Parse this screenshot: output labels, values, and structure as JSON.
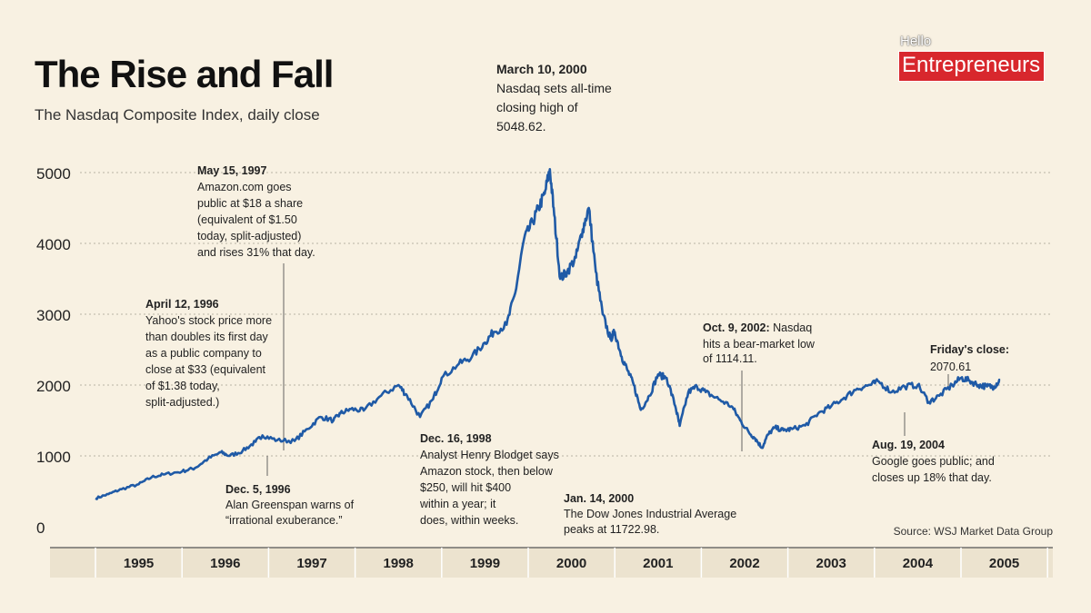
{
  "header": {
    "title": "The Rise and Fall",
    "subtitle": "The Nasdaq Composite Index, daily close"
  },
  "brand": {
    "hello": "Hello",
    "name": "Entrepreneurs"
  },
  "colors": {
    "background": "#f8f1e2",
    "line": "#1f5aa6",
    "brand_red": "#d8272d",
    "axis_band": "#ece3cf"
  },
  "source": "Source: WSJ Market Data Group",
  "chart_data": {
    "type": "line",
    "title": "The Rise and Fall",
    "subtitle": "The Nasdaq Composite Index, daily close",
    "xlabel": "",
    "ylabel": "",
    "ylim": [
      0,
      5000
    ],
    "xlim": [
      1995.0,
      2006.0
    ],
    "yticks": [
      0,
      1000,
      2000,
      3000,
      4000,
      5000
    ],
    "ytick_labels": [
      "0",
      "1000",
      "2000",
      "3000",
      "4000",
      "5000"
    ],
    "xtick_labels": [
      "1995",
      "1996",
      "1997",
      "1998",
      "1999",
      "2000",
      "2001",
      "2002",
      "2003",
      "2004",
      "2005"
    ],
    "grid": true,
    "series": [
      {
        "values_note": "",
        "x": [
          1995.0,
          1995.15,
          1995.3,
          1995.5,
          1995.65,
          1995.8,
          1996.0,
          1996.15,
          1996.3,
          1996.45,
          1996.55,
          1996.7,
          1996.85,
          1996.93,
          1997.1,
          1997.3,
          1997.45,
          1997.6,
          1997.75,
          1997.83,
          1997.95,
          1998.1,
          1998.3,
          1998.5,
          1998.6,
          1998.75,
          1998.9,
          1999.0,
          1999.2,
          1999.35,
          1999.5,
          1999.6,
          1999.75,
          1999.85,
          1999.95,
          2000.05,
          2000.12,
          2000.19,
          2000.25,
          2000.3,
          2000.37,
          2000.45,
          2000.55,
          2000.63,
          2000.7,
          2000.78,
          2000.86,
          2000.95,
          2001.0,
          2001.08,
          2001.15,
          2001.22,
          2001.3,
          2001.4,
          2001.5,
          2001.6,
          2001.7,
          2001.75,
          2001.85,
          2001.95,
          2002.05,
          2002.2,
          2002.35,
          2002.45,
          2002.55,
          2002.62,
          2002.7,
          2002.77,
          2002.85,
          2002.95,
          2003.05,
          2003.2,
          2003.35,
          2003.5,
          2003.65,
          2003.8,
          2003.95,
          2004.05,
          2004.2,
          2004.35,
          2004.5,
          2004.63,
          2004.75,
          2004.9,
          2005.0,
          2005.1,
          2005.2,
          2005.3,
          2005.38,
          2005.45
        ],
        "y": [
          400,
          460,
          530,
          600,
          700,
          740,
          780,
          830,
          960,
          1050,
          1000,
          1070,
          1200,
          1290,
          1220,
          1210,
          1380,
          1550,
          1500,
          1600,
          1660,
          1640,
          1850,
          2000,
          1850,
          1550,
          1800,
          2100,
          2300,
          2400,
          2600,
          2750,
          2850,
          3300,
          4050,
          4300,
          4500,
          4700,
          5048,
          4400,
          3500,
          3600,
          3800,
          4200,
          4500,
          3600,
          3000,
          2650,
          2750,
          2400,
          2200,
          2000,
          1650,
          1850,
          2150,
          2100,
          1700,
          1423,
          1900,
          1980,
          1900,
          1800,
          1700,
          1500,
          1330,
          1250,
          1114,
          1300,
          1400,
          1360,
          1380,
          1430,
          1600,
          1700,
          1820,
          1950,
          2003,
          2050,
          1900,
          1980,
          2000,
          1760,
          1850,
          2000,
          2100,
          2060,
          2000,
          1980,
          1980,
          2070
        ]
      }
    ],
    "annotations": [
      {
        "date": "March 10, 2000",
        "text": "Nasdaq sets all-time closing high of 5048.62."
      },
      {
        "date": "May 15, 1997",
        "text": "Amazon.com goes public at $18 a share (equivalent of $1.50 today, split-adjusted) and rises 31% that day."
      },
      {
        "date": "April 12, 1996",
        "text": "Yahoo's stock price more than doubles its first day as a public company to close at $33 (equivalent of $1.38 today, split-adjusted.)"
      },
      {
        "date": "Dec. 5, 1996",
        "text": "Alan Greenspan warns of “irrational exuberance.”"
      },
      {
        "date": "Dec. 16, 1998",
        "text": "Analyst Henry Blodget says Amazon stock, then below $250, will hit $400 within a year; it does, within weeks."
      },
      {
        "date": "Jan. 14, 2000",
        "text": "The Dow Jones Industrial Average peaks at 11722.98."
      },
      {
        "date": "Oct. 9, 2002:",
        "text": "Nasdaq hits a bear-market low of 1114.11."
      },
      {
        "date": "Friday's close:",
        "text": "2070.61"
      },
      {
        "date": "Aug. 19, 2004",
        "text": "Google goes public; and closes up 18% that day."
      }
    ]
  },
  "annotation_lines": {
    "march2000": [
      "March 10, 2000",
      "Nasdaq sets all-time",
      "closing high of",
      "5048.62."
    ],
    "may1997": [
      "May 15, 1997",
      "Amazon.com goes",
      "public at $18 a share",
      "(equivalent of $1.50",
      "today, split-adjusted)",
      "and rises 31% that day."
    ],
    "apr1996": [
      "April 12, 1996",
      "Yahoo's stock price more",
      "than doubles its first day",
      "as a public company to",
      "close at $33 (equivalent",
      "of $1.38 today,",
      "split-adjusted.)"
    ],
    "dec1996": [
      "Dec. 5, 1996",
      "Alan Greenspan warns of",
      "“irrational exuberance.”"
    ],
    "dec1998": [
      "Dec. 16, 1998",
      "Analyst Henry Blodget says",
      "Amazon stock, then below",
      "$250, will hit $400",
      "within a year; it",
      "does, within weeks."
    ],
    "jan2000": [
      "Jan. 14, 2000",
      "The Dow Jones Industrial Average",
      "peaks at 11722.98."
    ],
    "oct2002": [
      "Oct. 9, 2002:",
      "Nasdaq",
      "hits a bear-market low",
      "of 1114.11."
    ],
    "friday": [
      "Friday's close:",
      "2070.61"
    ],
    "aug2004": [
      "Aug. 19, 2004",
      "Google goes public; and",
      "closes up 18% that day."
    ]
  }
}
